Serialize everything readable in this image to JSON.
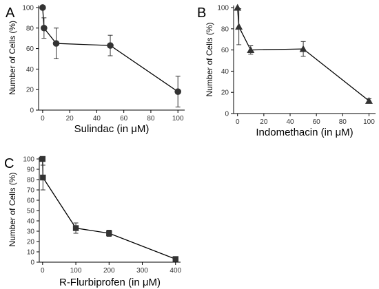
{
  "chart_data": [
    {
      "panel": "A",
      "type": "line",
      "marker": "circle",
      "xlabel": "Sulindac (in μM)",
      "ylabel": "Number of Cells (%)",
      "xlim": [
        -3,
        105
      ],
      "ylim": [
        0,
        102
      ],
      "xticks": [
        0,
        20,
        40,
        60,
        80,
        100
      ],
      "yticks": [
        0,
        20,
        40,
        60,
        80,
        100
      ],
      "x": [
        0,
        1,
        10,
        50,
        100
      ],
      "y": [
        100,
        80,
        65,
        63,
        18
      ],
      "err": [
        0,
        10,
        15,
        10,
        15
      ],
      "color": "#333333"
    },
    {
      "panel": "B",
      "type": "line",
      "marker": "triangle",
      "xlabel": "Indomethacin (in μM)",
      "ylabel": "Number of Cells (%)",
      "xlim": [
        -3,
        105
      ],
      "ylim": [
        0,
        102
      ],
      "xticks": [
        0,
        20,
        40,
        60,
        80,
        100
      ],
      "yticks": [
        0,
        20,
        40,
        60,
        80,
        100
      ],
      "x": [
        0,
        1,
        10,
        50,
        100
      ],
      "y": [
        100,
        82,
        60,
        61,
        12
      ],
      "err": [
        0,
        17,
        4,
        7,
        2
      ],
      "color": "#333333"
    },
    {
      "panel": "C",
      "type": "line",
      "marker": "square",
      "xlabel": "R-Flurbiprofen (in μM)",
      "ylabel": "Number of Cells (%)",
      "xlim": [
        -10,
        415
      ],
      "ylim": [
        0,
        102
      ],
      "xticks": [
        0,
        100,
        200,
        300,
        400
      ],
      "yticks": [
        0,
        10,
        20,
        30,
        40,
        50,
        60,
        70,
        80,
        90,
        100
      ],
      "x": [
        0,
        1,
        100,
        200,
        400
      ],
      "y": [
        100,
        82,
        33,
        28,
        3
      ],
      "err": [
        0,
        12,
        5,
        3,
        1
      ],
      "color": "#333333"
    }
  ]
}
